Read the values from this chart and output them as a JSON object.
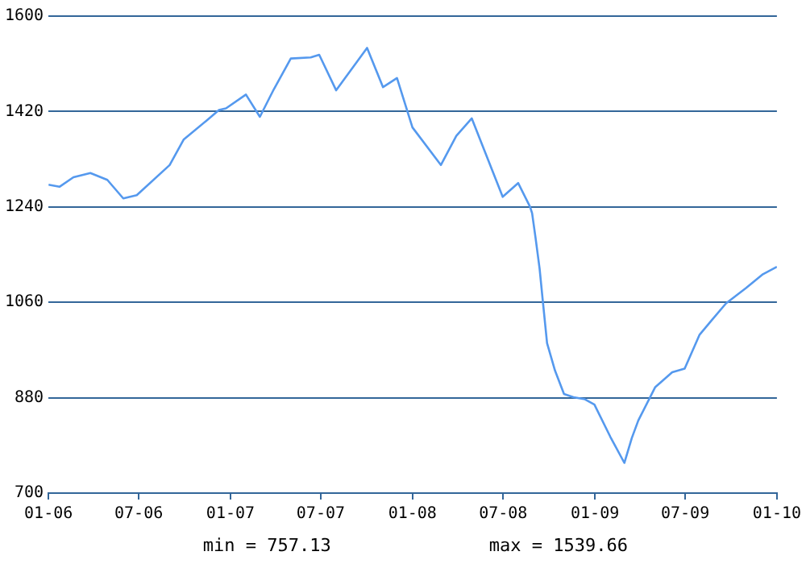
{
  "chart_data": {
    "type": "line",
    "annotations": [
      "min = 757.13",
      "max = 1539.66"
    ],
    "x": [
      "2006-01-01",
      "2006-01-23",
      "2006-02-20",
      "2006-03-26",
      "2006-04-29",
      "2006-05-31",
      "2006-06-27",
      "2006-09-01",
      "2006-09-29",
      "2006-11-13",
      "2006-12-09",
      "2006-12-23",
      "2007-02-01",
      "2007-03-01",
      "2007-03-29",
      "2007-05-02",
      "2007-06-11",
      "2007-06-28",
      "2007-08-01",
      "2007-10-02",
      "2007-11-03",
      "2007-12-01",
      "2008-01-01",
      "2008-02-27",
      "2008-03-29",
      "2008-04-29",
      "2008-06-30",
      "2008-07-31",
      "2008-08-24",
      "2008-08-28",
      "2008-09-04",
      "2008-09-12",
      "2008-09-18",
      "2008-09-27",
      "2008-10-13",
      "2008-10-31",
      "2008-11-19",
      "2008-12-12",
      "2008-12-31",
      "2009-02-01",
      "2009-03-01",
      "2009-03-16",
      "2009-03-29",
      "2009-05-02",
      "2009-06-05",
      "2009-06-30",
      "2009-07-30",
      "2009-08-24",
      "2009-09-21",
      "2009-10-31",
      "2009-12-04",
      "2010-01-01"
    ],
    "series": [
      {
        "color": "#5599ee",
        "values": [
          1282,
          1278,
          1296,
          1304,
          1291,
          1256,
          1262,
          1319,
          1367,
          1402,
          1423,
          1426,
          1452,
          1410,
          1462,
          1520,
          1522,
          1527,
          1460,
          1540,
          1466,
          1483,
          1390,
          1319,
          1374,
          1407,
          1259,
          1285,
          1240,
          1228,
          1181,
          1124,
          1067,
          983,
          931,
          887,
          881,
          877,
          867,
          806,
          757,
          804,
          837,
          900,
          928,
          935,
          999,
          1027,
          1058,
          1087,
          1113,
          1127
        ]
      }
    ],
    "xlim": [
      "2006-01",
      "2010-01"
    ],
    "xticks": [
      {
        "value": "2006-01",
        "label": "01-06"
      },
      {
        "value": "2006-07",
        "label": "07-06"
      },
      {
        "value": "2007-01",
        "label": "01-07"
      },
      {
        "value": "2007-07",
        "label": "07-07"
      },
      {
        "value": "2008-01",
        "label": "01-08"
      },
      {
        "value": "2008-07",
        "label": "07-08"
      },
      {
        "value": "2009-01",
        "label": "01-09"
      },
      {
        "value": "2009-07",
        "label": "07-09"
      },
      {
        "value": "2010-01",
        "label": "01-10"
      }
    ],
    "ylim": [
      700,
      1600
    ],
    "yticks": [
      700,
      880,
      1060,
      1240,
      1420,
      1600
    ],
    "grid": "y",
    "legend": false,
    "marker": "none",
    "line_style": "solid"
  }
}
